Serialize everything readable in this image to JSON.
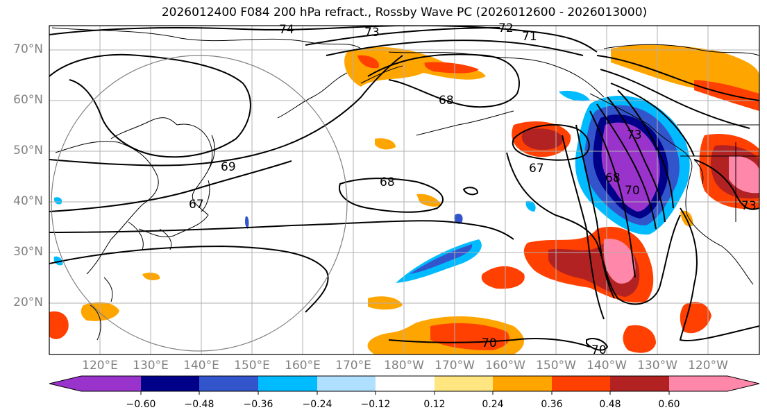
{
  "title": "2026012400 F084 200 hPa refract., Rossby Wave PC (2026012600 - 2026013000)",
  "latitude_labels": [
    "70°N",
    "60°N",
    "50°N",
    "40°N",
    "30°N",
    "20°N"
  ],
  "longitude_labels": [
    "120°E",
    "130°E",
    "140°E",
    "150°E",
    "160°E",
    "170°E",
    "180°W",
    "170°W",
    "160°W",
    "150°W",
    "140°W",
    "130°W",
    "120°W"
  ],
  "contour_labels": [
    "74",
    "73",
    "72",
    "71",
    "68",
    "69",
    "68",
    "67",
    "68",
    "70",
    "73",
    "70",
    "70",
    "73",
    "67"
  ],
  "colorbar": {
    "ticks": [
      "−0.60",
      "−0.48",
      "−0.36",
      "−0.24",
      "−0.12",
      "0.12",
      "0.24",
      "0.36",
      "0.48",
      "0.60"
    ],
    "colors": [
      "#9933cc",
      "#000088",
      "#3355cc",
      "#00bbff",
      "#b0e0ff",
      "#ffffff",
      "#ffe680",
      "#ffa500",
      "#ff4000",
      "#b22222",
      "#ff88aa"
    ]
  }
}
